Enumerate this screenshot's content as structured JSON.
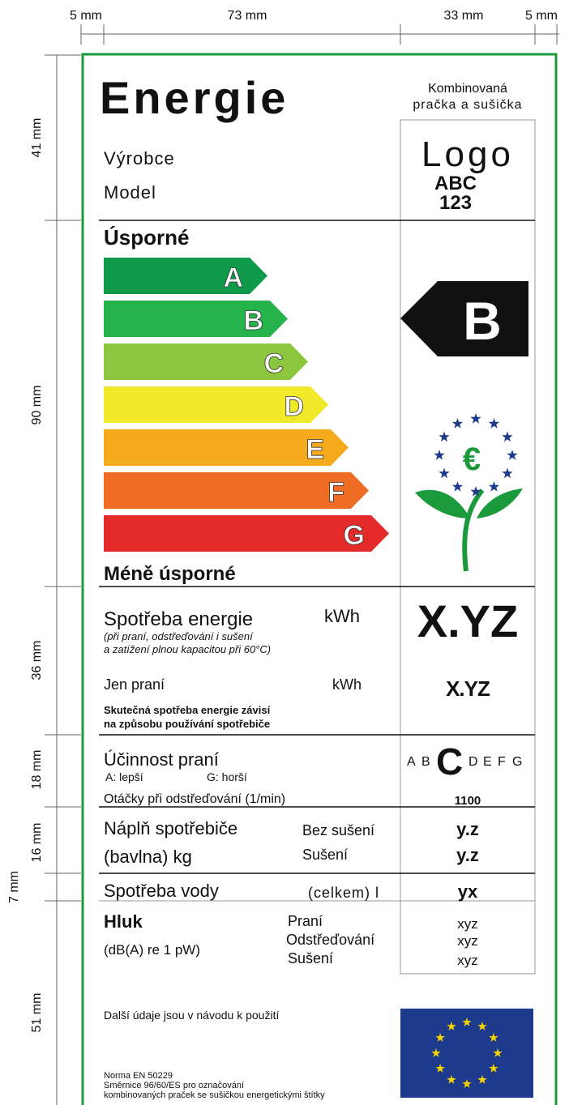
{
  "dimensions": {
    "top": [
      "5 mm",
      "73 mm",
      "33 mm",
      "5 mm"
    ],
    "left": [
      "41 mm",
      "90 mm",
      "36 mm",
      "18 mm",
      "16 mm",
      "7 mm",
      "51 mm"
    ]
  },
  "header": {
    "title": "Energie",
    "appliance": [
      "Kombinovaná",
      "pračka a sušička"
    ],
    "manufacturer": "Výrobce",
    "model": "Model",
    "logo": "Logo",
    "logo_text": [
      "ABC",
      "123"
    ]
  },
  "scale": {
    "top": "Úsporné",
    "bottom": "Méně úsporné",
    "classes": [
      "A",
      "B",
      "C",
      "D",
      "E",
      "F",
      "G"
    ],
    "rating": "B"
  },
  "energy": {
    "label": "Spotřeba energie",
    "unit": "kWh",
    "note": [
      "(při praní, odstřeďování i sušení",
      "a zatížení plnou kapacitou při 60°C)"
    ],
    "value": "X.YZ",
    "wash_label": "Jen praní",
    "wash_unit": "kWh",
    "wash_value": "X.YZ",
    "disclaimer": [
      "Skutečná spotřeba energie závisí",
      "na způsobu používání spotřebiče"
    ]
  },
  "wash_efficiency": {
    "label": "Účinnost praní",
    "better": "A: lepší",
    "worse": "G: horší",
    "classes": [
      "A",
      "B",
      "C",
      "D",
      "E",
      "F",
      "G"
    ],
    "rating": "C",
    "spin_label": "Otáčky při odstřeďování (1/min)",
    "spin_value": 1100
  },
  "capacity": {
    "label": "Náplň spotřebiče",
    "sublabel": "(bavlna) kg",
    "rows": [
      {
        "label": "Bez sušení",
        "value": "y.z"
      },
      {
        "label": "Sušení",
        "value": "y.z"
      }
    ]
  },
  "water": {
    "label": "Spotřeba vody",
    "qualifier": "(celkem) l",
    "value": "yx"
  },
  "noise": {
    "label": "Hluk",
    "unit": "(dB(A) re 1 pW)",
    "rows": [
      {
        "label": "Praní",
        "value": "xyz"
      },
      {
        "label": "Odstřeďování",
        "value": "xyz"
      },
      {
        "label": "Sušení",
        "value": "xyz"
      }
    ]
  },
  "footer": {
    "info": "Další údaje jsou v návodu k použití",
    "norms": [
      "Norma EN 50229",
      "Směrnice 96/60/ES pro označování",
      "kombinovaných praček se sušičkou energetickými štítky"
    ]
  }
}
